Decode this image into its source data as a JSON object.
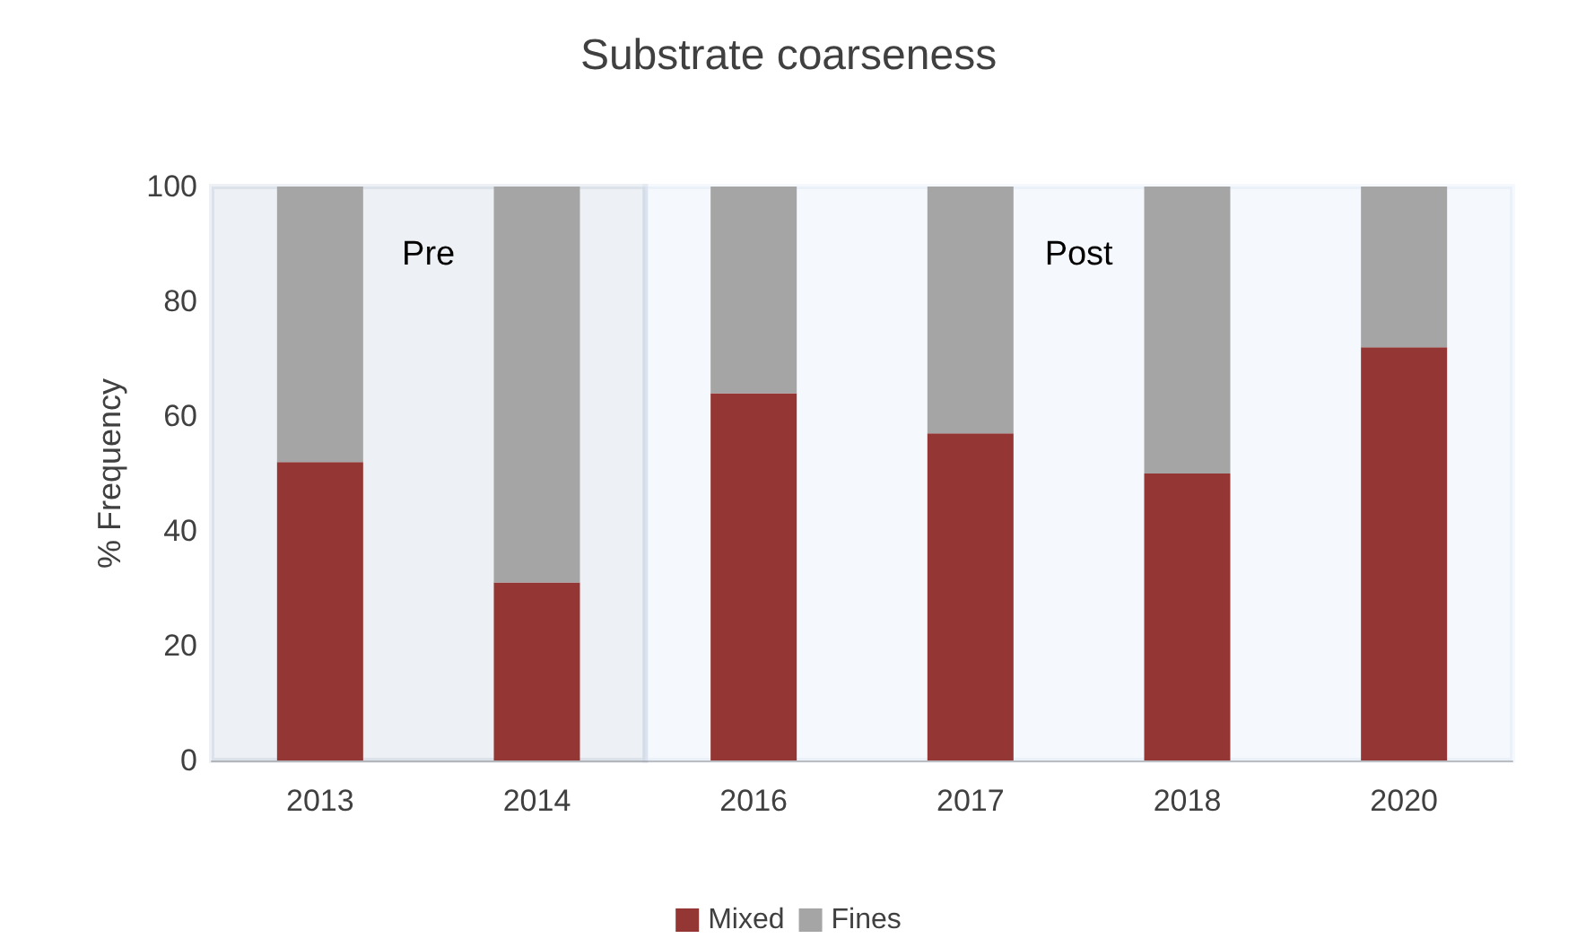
{
  "chart_data": {
    "type": "bar",
    "title": "Substrate coarseness",
    "ylabel": "% Frequency",
    "stacked": true,
    "categories": [
      "2013",
      "2014",
      "2016",
      "2017",
      "2018",
      "2020"
    ],
    "series": [
      {
        "name": "Mixed",
        "color": "#943634",
        "values": [
          52,
          31,
          64,
          57,
          50,
          72
        ]
      },
      {
        "name": "Fines",
        "color": "#a5a5a5",
        "values": [
          48,
          69,
          36,
          43,
          50,
          28
        ]
      }
    ],
    "ylim": [
      0,
      100
    ],
    "yticks": [
      0,
      20,
      40,
      60,
      80,
      100
    ],
    "grid": false,
    "legend": "bottom",
    "bands": [
      {
        "axis": "x",
        "from": "2013",
        "to": "2014",
        "label": "Pre",
        "color": "#1f3b6e"
      },
      {
        "axis": "x",
        "from": "2016",
        "to": "2020",
        "label": "Post",
        "color": "#7ea6d8"
      }
    ]
  }
}
